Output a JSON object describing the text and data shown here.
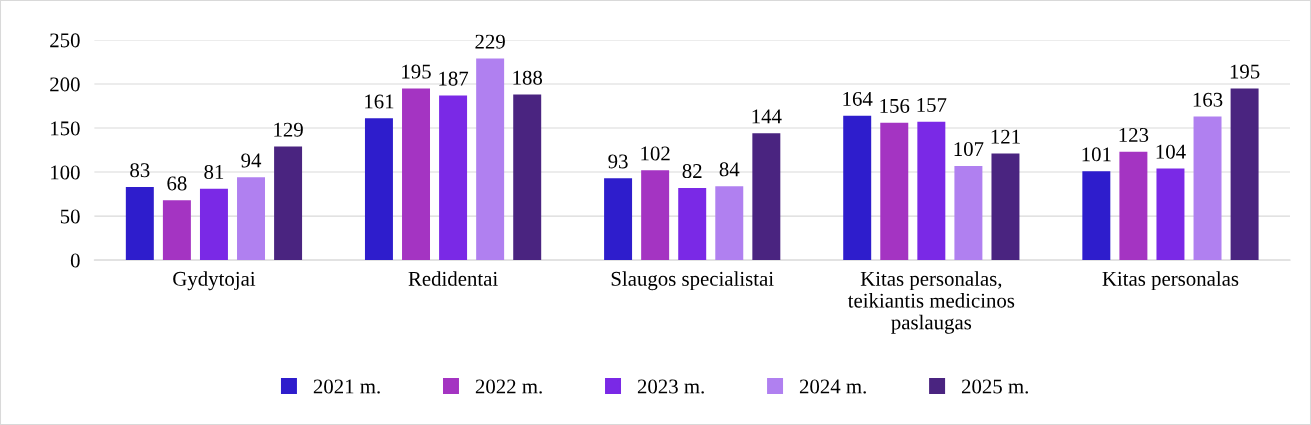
{
  "chart_data": {
    "type": "bar",
    "categories": [
      "Gydytojai",
      "Redidentai",
      "Slaugos specialistai",
      "Kitas personalas,\nteikiantis medicinos\npaslaugas",
      "Kitas personalas"
    ],
    "series": [
      {
        "name": "2021 m.",
        "color": "#2e1dcc",
        "values": [
          83,
          161,
          93,
          164,
          101
        ]
      },
      {
        "name": "2022 m.",
        "color": "#a434c2",
        "values": [
          68,
          195,
          102,
          156,
          123
        ]
      },
      {
        "name": "2023 m.",
        "color": "#7a29e6",
        "values": [
          81,
          187,
          82,
          157,
          104
        ]
      },
      {
        "name": "2024 m.",
        "color": "#b080f0",
        "values": [
          94,
          229,
          84,
          107,
          163
        ]
      },
      {
        "name": "2025 m.",
        "color": "#4a2480",
        "values": [
          129,
          188,
          144,
          121,
          195
        ]
      }
    ],
    "ylim": [
      0,
      250
    ],
    "yticks": [
      0,
      50,
      100,
      150,
      200,
      250
    ],
    "grid": "y",
    "legend": "bottom",
    "data_labels": true
  }
}
